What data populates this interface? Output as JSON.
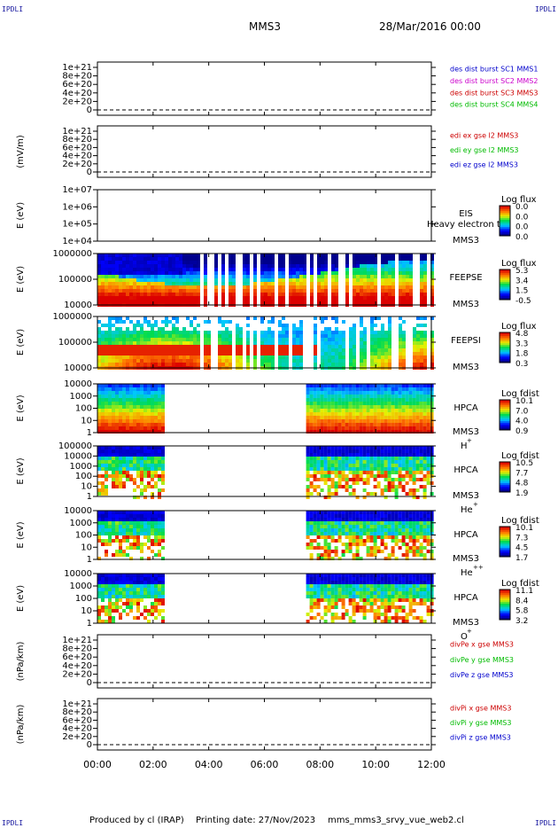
{
  "corner_mark": "IPDLI",
  "header": {
    "spacecraft": "MMS3",
    "date": "28/Mar/2016 00:00"
  },
  "footer": {
    "producer": "Produced by cl (IRAP)",
    "printing": "Printing date: 27/Nov/2023",
    "file": "mms_mms3_srvy_vue_web2.cl"
  },
  "chart_data": {
    "type": "heatmap",
    "x": {
      "ticks": [
        "00:00",
        "02:00",
        "04:00",
        "06:00",
        "08:00",
        "10:00",
        "12:00"
      ],
      "range_hours": [
        0,
        12
      ]
    },
    "panels": [
      {
        "id": "p1",
        "kind": "line",
        "ylabel": "",
        "yticks": [
          "1e+21",
          "8e+20",
          "6e+20",
          "4e+20",
          "2e+20",
          "0"
        ],
        "legend": [
          {
            "text": "des dist burst SC1 MMS1",
            "color": "#0000cc"
          },
          {
            "text": "des dist burst SC2 MMS2",
            "color": "#cc00cc"
          },
          {
            "text": "des dist burst SC3 MMS3",
            "color": "#cc0000"
          },
          {
            "text": "des dist burst SC4 MMS4",
            "color": "#00bb00"
          }
        ]
      },
      {
        "id": "p2",
        "kind": "line",
        "ylabel": "(mV/m)",
        "yticks": [
          "1e+21",
          "8e+20",
          "6e+20",
          "4e+20",
          "2e+20",
          "0"
        ],
        "legend": [
          {
            "text": "edi ex gse l2 MMS3",
            "color": "#cc0000"
          },
          {
            "text": "edi ey gse l2 MMS3",
            "color": "#00bb00"
          },
          {
            "text": "edi ez gse l2 MMS3",
            "color": "#0000cc"
          }
        ]
      },
      {
        "id": "p3",
        "kind": "spectrogram",
        "ylabel": "E (eV)",
        "yticks": [
          "1e+07",
          "1e+06",
          "1e+05",
          "1e+04"
        ],
        "instrument": [
          "EIS",
          "MMS3"
        ],
        "overlay": "Heavy electron to",
        "colorbar": {
          "title": "Log flux",
          "ticks": [
            "0.0",
            "0.0",
            "0.0",
            "0.0"
          ]
        },
        "coverage_hours": []
      },
      {
        "id": "p4",
        "kind": "spectrogram",
        "ylabel": "E (eV)",
        "yticks": [
          "1000000",
          "100000",
          "10000"
        ],
        "instrument": [
          "FEEPSE",
          "MMS3"
        ],
        "colorbar": {
          "title": "Log flux",
          "ticks": [
            "5.3",
            "3.4",
            "1.5",
            "-0.5"
          ]
        },
        "coverage_hours": [
          [
            0,
            12
          ]
        ]
      },
      {
        "id": "p5",
        "kind": "spectrogram",
        "ylabel": "E (eV)",
        "yticks": [
          "1000000",
          "100000",
          "10000"
        ],
        "instrument": [
          "FEEPSI",
          "MMS3"
        ],
        "colorbar": {
          "title": "Log flux",
          "ticks": [
            "4.8",
            "3.3",
            "1.8",
            "0.3"
          ]
        },
        "coverage_hours": [
          [
            0,
            12
          ]
        ]
      },
      {
        "id": "p6",
        "kind": "spectrogram",
        "ylabel": "E (eV)",
        "yticks": [
          "10000",
          "1000",
          "100",
          "10",
          "1"
        ],
        "instrument": [
          "HPCA",
          "MMS3"
        ],
        "species": "H",
        "species_sup": "+",
        "colorbar": {
          "title": "Log fdist",
          "ticks": [
            "10.1",
            "7.0",
            "4.0",
            "0.9"
          ]
        },
        "coverage_hours": [
          [
            0,
            2.35
          ],
          [
            7.5,
            12
          ]
        ]
      },
      {
        "id": "p7",
        "kind": "spectrogram",
        "ylabel": "E (eV)",
        "yticks": [
          "100000",
          "10000",
          "1000",
          "100",
          "10",
          "1"
        ],
        "instrument": [
          "HPCA",
          "MMS3"
        ],
        "species": "He",
        "species_sup": "+",
        "colorbar": {
          "title": "Log fdist",
          "ticks": [
            "10.5",
            "7.7",
            "4.8",
            "1.9"
          ]
        },
        "coverage_hours": [
          [
            0,
            2.35
          ],
          [
            7.5,
            12
          ]
        ]
      },
      {
        "id": "p8",
        "kind": "spectrogram",
        "ylabel": "E (eV)",
        "yticks": [
          "10000",
          "1000",
          "100",
          "10",
          "1"
        ],
        "instrument": [
          "HPCA",
          "MMS3"
        ],
        "species": "He",
        "species_sup": "++",
        "colorbar": {
          "title": "Log fdist",
          "ticks": [
            "10.1",
            "7.3",
            "4.5",
            "1.7"
          ]
        },
        "coverage_hours": [
          [
            0,
            2.35
          ],
          [
            7.5,
            12
          ]
        ]
      },
      {
        "id": "p9",
        "kind": "spectrogram",
        "ylabel": "E (eV)",
        "yticks": [
          "10000",
          "1000",
          "100",
          "10",
          "1"
        ],
        "instrument": [
          "HPCA",
          "MMS3"
        ],
        "species": "O",
        "species_sup": "+",
        "colorbar": {
          "title": "Log fdist",
          "ticks": [
            "11.1",
            "8.4",
            "5.8",
            "3.2"
          ]
        },
        "coverage_hours": [
          [
            0,
            2.35
          ],
          [
            7.5,
            12
          ]
        ]
      },
      {
        "id": "p10",
        "kind": "line",
        "ylabel": "(nPa/km)",
        "yticks": [
          "1e+21",
          "8e+20",
          "6e+20",
          "4e+20",
          "2e+20",
          "0"
        ],
        "legend": [
          {
            "text": "divPe x gse MMS3",
            "color": "#cc0000"
          },
          {
            "text": "divPe y gse MMS3",
            "color": "#00bb00"
          },
          {
            "text": "divPe z gse MMS3",
            "color": "#0000cc"
          }
        ]
      },
      {
        "id": "p11",
        "kind": "line",
        "ylabel": "(nPa/km)",
        "yticks": [
          "1e+21",
          "8e+20",
          "6e+20",
          "4e+20",
          "2e+20",
          "0"
        ],
        "legend": [
          {
            "text": "divPi x gse MMS3",
            "color": "#cc0000"
          },
          {
            "text": "divPi y gse MMS3",
            "color": "#00bb00"
          },
          {
            "text": "divPi z gse MMS3",
            "color": "#0000cc"
          }
        ]
      }
    ]
  }
}
